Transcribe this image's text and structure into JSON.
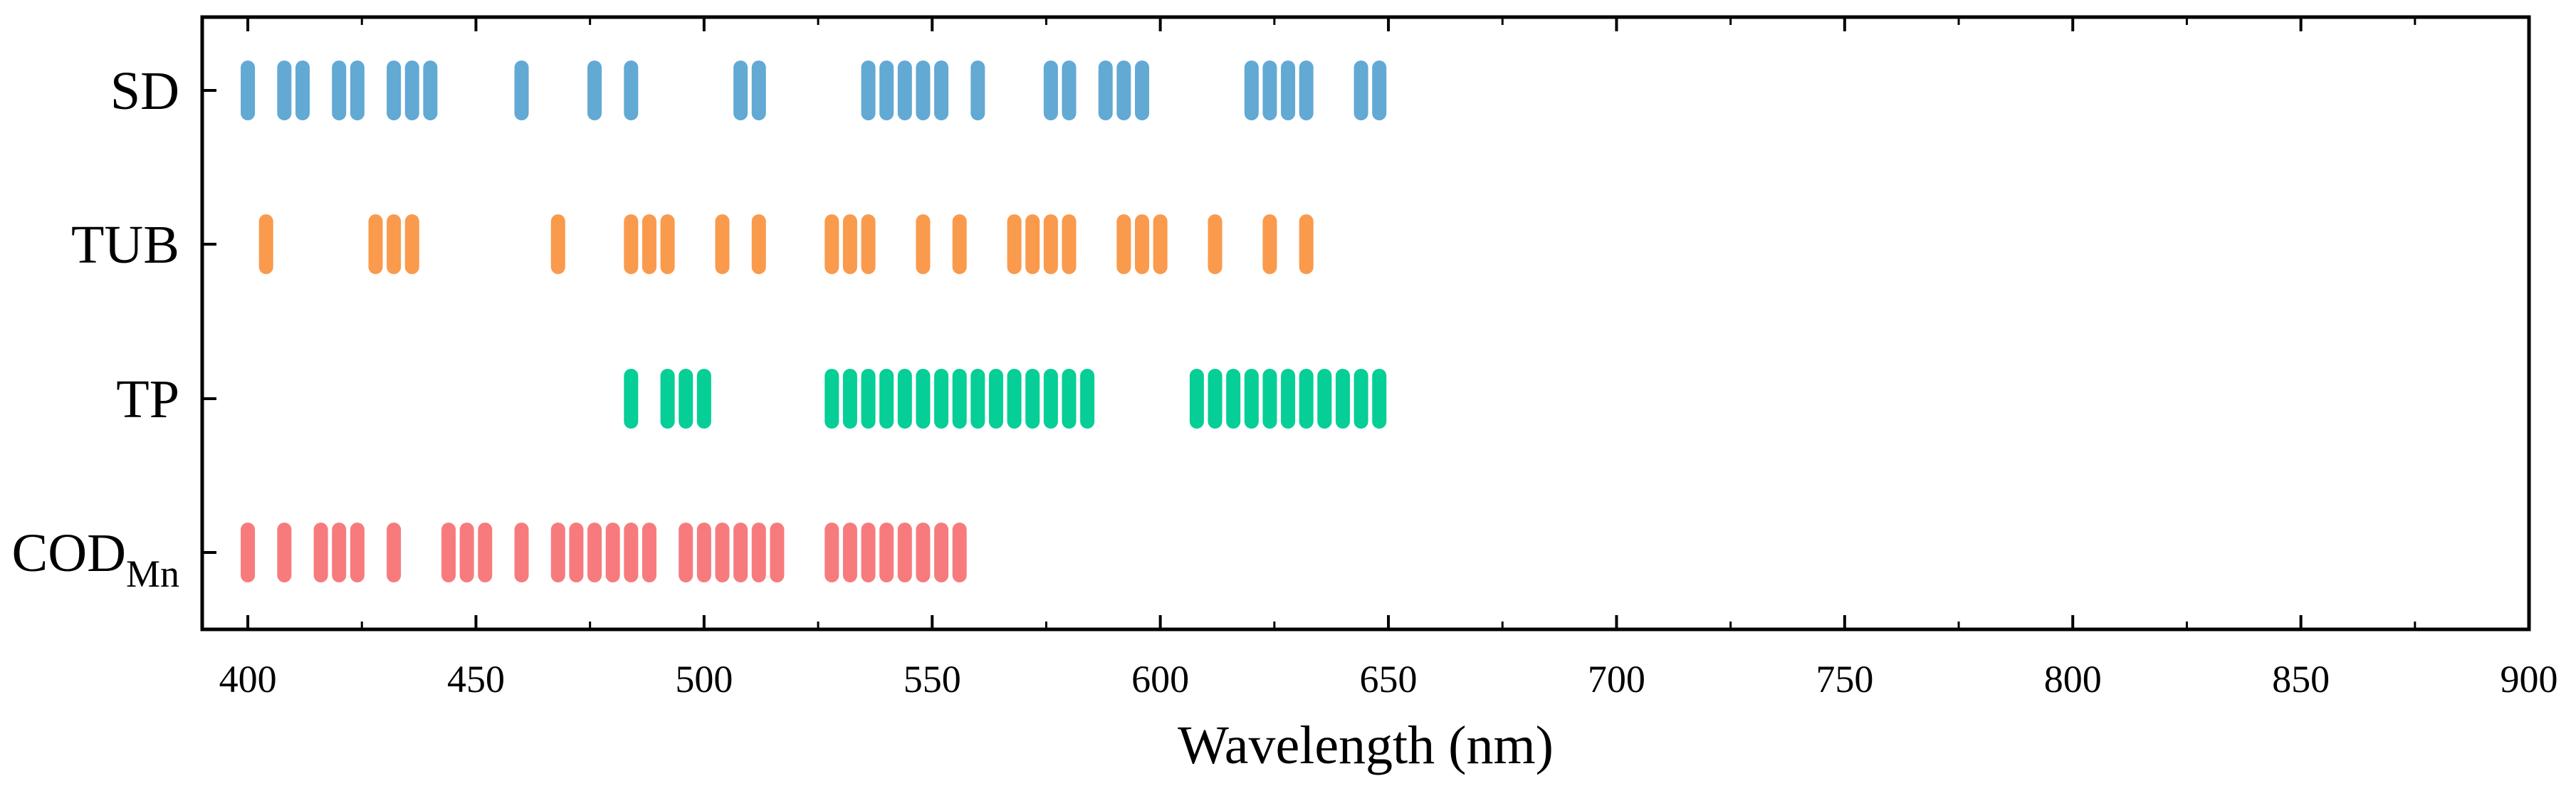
{
  "chart_data": {
    "type": "scatter",
    "title": "",
    "xlabel": "Wavelength (nm)",
    "ylabel": "",
    "xlim": [
      390,
      900
    ],
    "x_ticks": [
      400,
      450,
      500,
      550,
      600,
      650,
      700,
      750,
      800,
      850,
      900
    ],
    "x_minor_step": 25,
    "grid": false,
    "legend": "none",
    "categories": [
      {
        "key": "SD",
        "main": "SD",
        "sub": ""
      },
      {
        "key": "TUB",
        "main": "TUB",
        "sub": ""
      },
      {
        "key": "TP",
        "main": "TP",
        "sub": ""
      },
      {
        "key": "CODMn",
        "main": "COD",
        "sub": "Mn"
      }
    ],
    "series": [
      {
        "category": "SD",
        "color": "#62A9D4",
        "x": [
          400,
          408,
          412,
          420,
          424,
          432,
          436,
          440,
          460,
          476,
          484,
          508,
          512,
          536,
          540,
          544,
          548,
          552,
          560,
          576,
          580,
          588,
          592,
          596,
          620,
          624,
          628,
          632,
          644,
          648
        ]
      },
      {
        "category": "TUB",
        "color": "#FA9A4D",
        "x": [
          404,
          428,
          432,
          436,
          468,
          484,
          488,
          492,
          504,
          512,
          528,
          532,
          536,
          548,
          556,
          568,
          572,
          576,
          580,
          592,
          596,
          600,
          612,
          624,
          632
        ]
      },
      {
        "category": "TP",
        "color": "#05CE96",
        "x": [
          484,
          492,
          496,
          500,
          528,
          532,
          536,
          540,
          544,
          548,
          552,
          556,
          560,
          564,
          568,
          572,
          576,
          580,
          584,
          608,
          612,
          616,
          620,
          624,
          628,
          632,
          636,
          640,
          644,
          648
        ]
      },
      {
        "category": "CODMn",
        "color": "#F77B7D",
        "x": [
          400,
          408,
          416,
          420,
          424,
          432,
          444,
          448,
          452,
          460,
          468,
          472,
          476,
          480,
          484,
          488,
          496,
          500,
          504,
          508,
          512,
          516,
          528,
          532,
          536,
          540,
          544,
          548,
          552,
          556
        ]
      }
    ]
  }
}
